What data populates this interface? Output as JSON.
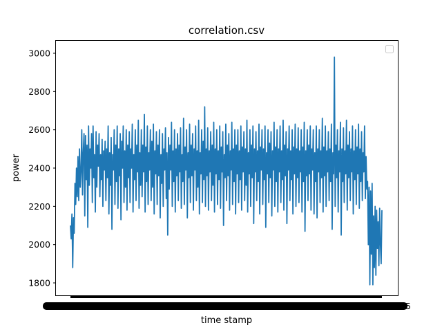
{
  "chart_data": {
    "type": "line",
    "title": "correlation.csv",
    "xlabel": "time stamp",
    "ylabel": "power",
    "ylim": [
      1735,
      3065
    ],
    "yticks": [
      1800,
      2000,
      2200,
      2400,
      2600,
      2800,
      3000
    ],
    "x_tick_labels": "dense, overlapping (unreadable)",
    "legend": "top-right, empty",
    "grid": false,
    "line_color": "#1f77b4",
    "series": [
      {
        "values": [
          2100,
          2030,
          2160,
          1880,
          2140,
          2060,
          2320,
          2210,
          2400,
          2250,
          2460,
          2230,
          2500,
          2300,
          2380,
          2600,
          2260,
          2480,
          2580,
          2150,
          2570,
          2340,
          2520,
          2090,
          2620,
          2310,
          2500,
          2400,
          2580,
          2220,
          2620,
          2350,
          2470,
          2170,
          2590,
          2300,
          2520,
          2410,
          2580,
          2250,
          2470,
          2340,
          2550,
          2200,
          2490,
          2390,
          2540,
          2230,
          2500,
          2350,
          2620,
          2160,
          2480,
          2310,
          2560,
          2080,
          2470,
          2390,
          2600,
          2210,
          2520,
          2330,
          2620,
          2190,
          2500,
          2360,
          2580,
          2130,
          2540,
          2400,
          2620,
          2220,
          2490,
          2300,
          2600,
          2180,
          2520,
          2350,
          2590,
          2220,
          2500,
          2400,
          2630,
          2170,
          2470,
          2340,
          2600,
          2230,
          2520,
          2380,
          2650,
          2190,
          2480,
          2310,
          2600,
          2250,
          2520,
          2380,
          2680,
          2170,
          2510,
          2330,
          2620,
          2210,
          2480,
          2390,
          2600,
          2230,
          2540,
          2300,
          2630,
          2160,
          2490,
          2370,
          2590,
          2210,
          2520,
          2360,
          2600,
          2140,
          2470,
          2320,
          2580,
          2200,
          2500,
          2390,
          2610,
          2240,
          2480,
          2050,
          2560,
          2290,
          2520,
          2390,
          2640,
          2200,
          2490,
          2330,
          2600,
          2170,
          2500,
          2360,
          2580,
          2230,
          2520,
          2380,
          2610,
          2190,
          2470,
          2330,
          2660,
          2210,
          2510,
          2390,
          2600,
          2140,
          2480,
          2350,
          2630,
          2220,
          2520,
          2360,
          2580,
          2180,
          2500,
          2390,
          2620,
          2230,
          2490,
          2300,
          2650,
          2160,
          2480,
          2370,
          2600,
          2220,
          2540,
          2340,
          2720,
          2200,
          2500,
          2360,
          2610,
          2180,
          2490,
          2380,
          2590,
          2230,
          2520,
          2310,
          2640,
          2170,
          2500,
          2370,
          2600,
          2210,
          2490,
          2340,
          2620,
          2190,
          2510,
          2380,
          2590,
          2100,
          2470,
          2350,
          2630,
          2230,
          2520,
          2360,
          2580,
          2180,
          2490,
          2390,
          2640,
          2210,
          2500,
          2330,
          2600,
          2160,
          2520,
          2370,
          2600,
          2220,
          2490,
          2340,
          2620,
          2180,
          2510,
          2380,
          2590,
          2230,
          2500,
          2310,
          2650,
          2170,
          2480,
          2370,
          2600,
          2200,
          2520,
          2350,
          2620,
          2110,
          2500,
          2380,
          2590,
          2230,
          2490,
          2330,
          2630,
          2160,
          2510,
          2390,
          2600,
          2210,
          2500,
          2340,
          2620,
          2090,
          2480,
          2370,
          2600,
          2220,
          2530,
          2350,
          2590,
          2150,
          2490,
          2390,
          2640,
          2200,
          2510,
          2330,
          2600,
          2170,
          2500,
          2380,
          2620,
          2220,
          2490,
          2340,
          2650,
          2180,
          2520,
          2360,
          2590,
          2110,
          2500,
          2390,
          2620,
          2230,
          2490,
          2340,
          2600,
          2160,
          2510,
          2370,
          2630,
          2200,
          2500,
          2350,
          2610,
          2220,
          2490,
          2380,
          2600,
          2170,
          2510,
          2330,
          2640,
          2070,
          2490,
          2360,
          2600,
          2230,
          2520,
          2370,
          2620,
          2180,
          2500,
          2390,
          2600,
          2160,
          2480,
          2330,
          2620,
          2140,
          2500,
          2380,
          2600,
          2220,
          2490,
          2350,
          2660,
          2170,
          2510,
          2360,
          2620,
          2200,
          2490,
          2380,
          2590,
          2230,
          2500,
          2330,
          2630,
          2080,
          2480,
          2370,
          2980,
          2200,
          2520,
          2350,
          2600,
          2170,
          2490,
          2380,
          2640,
          2050,
          2500,
          2330,
          2610,
          2220,
          2490,
          2370,
          2650,
          2180,
          2520,
          2350,
          2590,
          2230,
          2500,
          2380,
          2620,
          2160,
          2490,
          2340,
          2600,
          2210,
          2510,
          2370,
          2630,
          2190,
          2500,
          2330,
          2590,
          2230,
          2480,
          2380,
          2620,
          2240,
          2460,
          2290,
          2330,
          2000,
          2300,
          1790,
          2280,
          1950,
          2320,
          1790,
          2150,
          1880,
          2200,
          1840,
          2180,
          1980,
          2120,
          1890,
          2190,
          2000,
          1900,
          2180
        ]
      }
    ]
  }
}
